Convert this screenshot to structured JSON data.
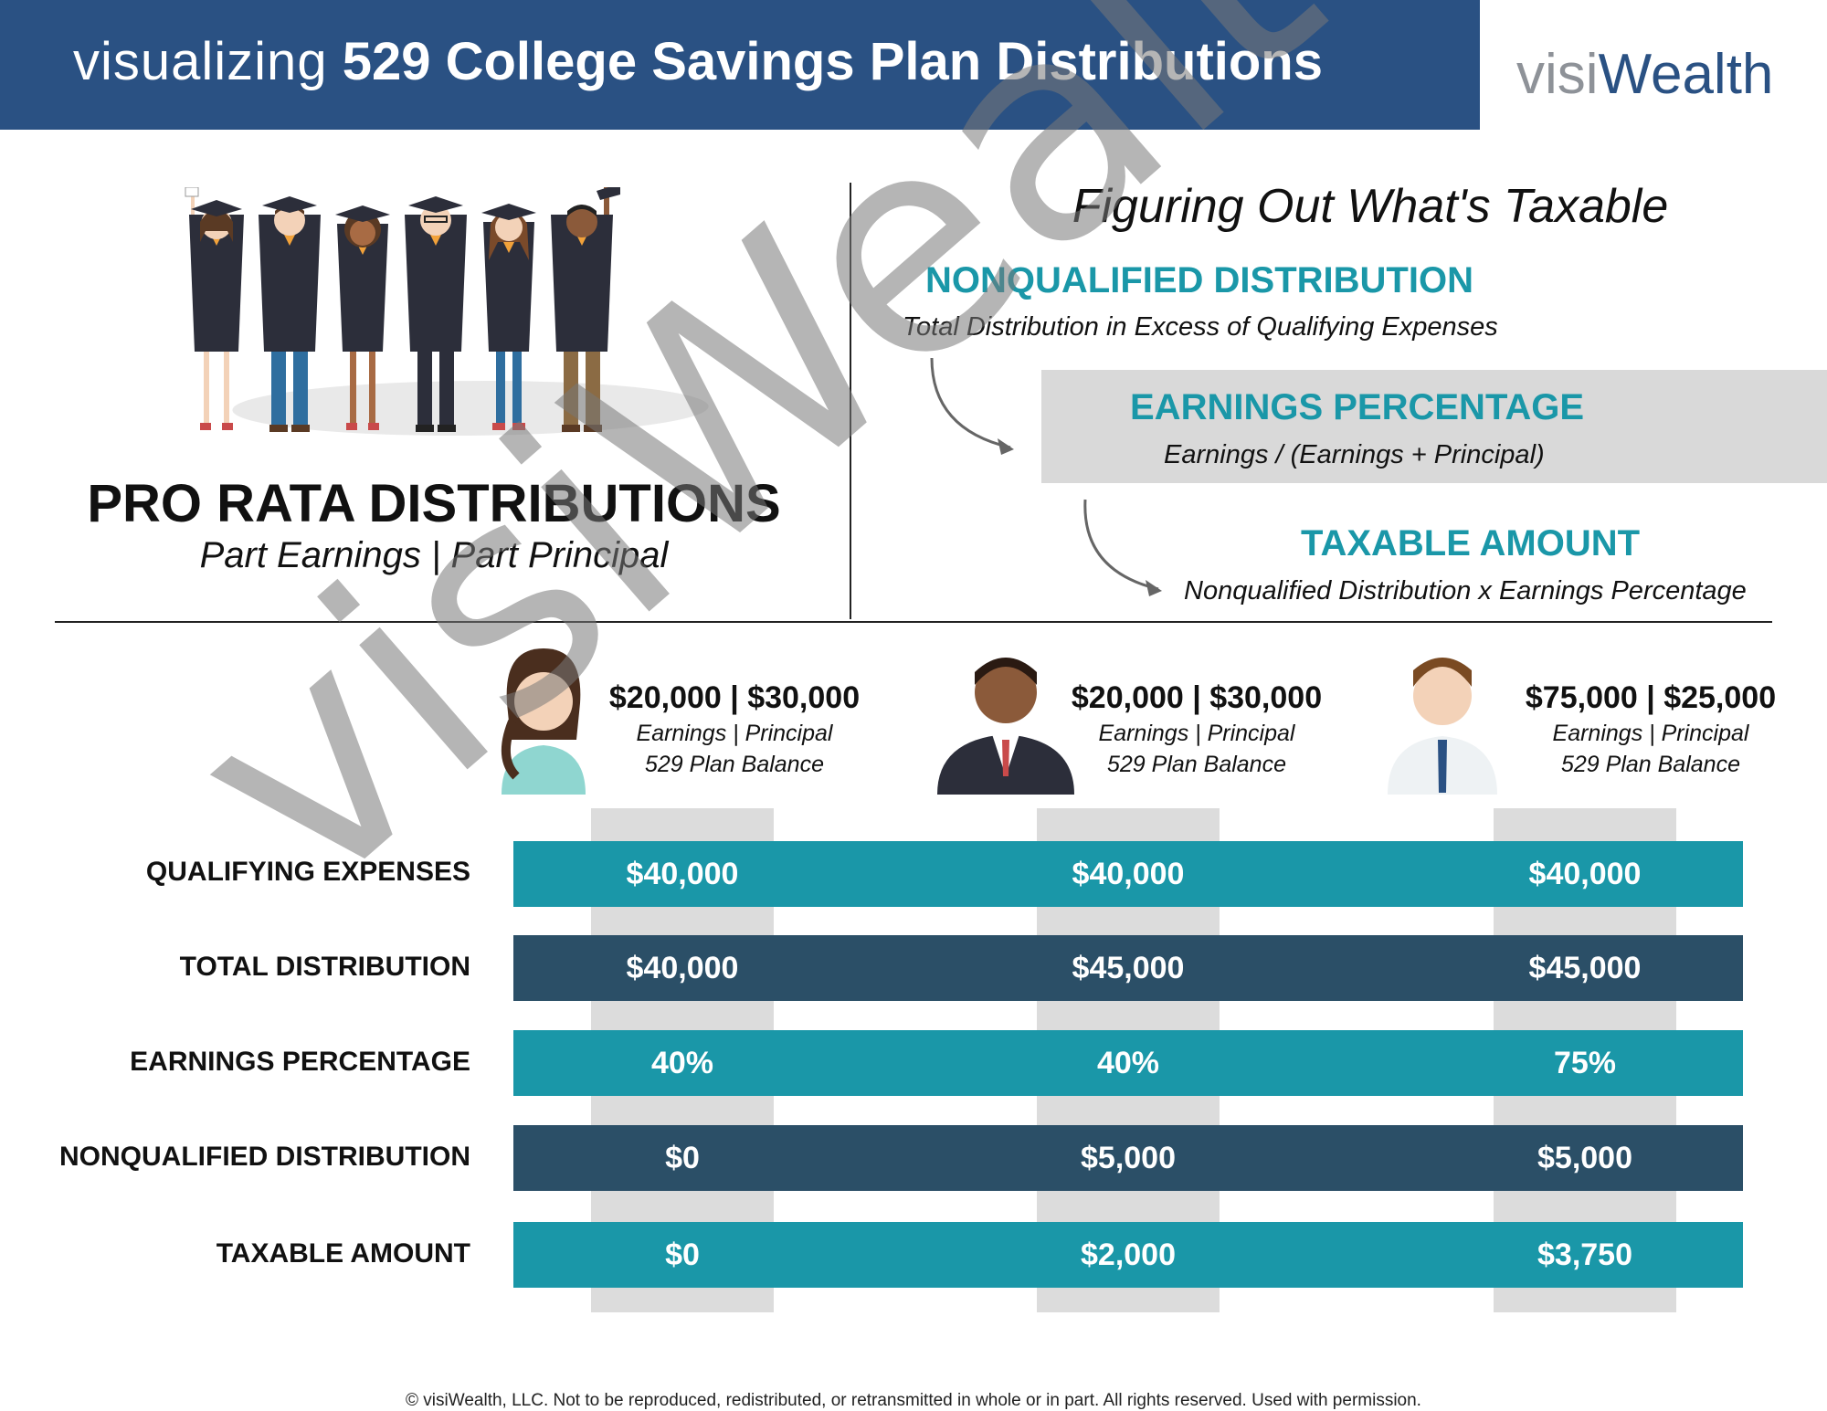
{
  "header": {
    "title_light": "visualizing",
    "title_bold": "529 College Savings Plan Distributions",
    "brand_gray": "visi",
    "brand_blue": "Wealth",
    "bg_color": "#2a5183"
  },
  "left_panel": {
    "illustration": "graduates-group-icon",
    "title": "PRO RATA DISTRIBUTIONS",
    "subtitle": "Part Earnings | Part Principal"
  },
  "right_panel": {
    "title": "Figuring Out What's Taxable",
    "steps": [
      {
        "heading": "NONQUALIFIED DISTRIBUTION",
        "description": "Total Distribution in Excess of Qualifying Expenses"
      },
      {
        "heading": "EARNINGS PERCENTAGE",
        "description": "Earnings / (Earnings + Principal)"
      },
      {
        "heading": "TAXABLE AMOUNT",
        "description": "Nonqualified Distribution x Earnings Percentage"
      }
    ],
    "accent_color": "#1a97a8"
  },
  "people": [
    {
      "icon": "woman-avatar-icon",
      "amounts": "$20,000 | $30,000",
      "label1": "Earnings | Principal",
      "label2": "529 Plan Balance"
    },
    {
      "icon": "man-suit-avatar-icon",
      "amounts": "$20,000 | $30,000",
      "label1": "Earnings | Principal",
      "label2": "529 Plan Balance"
    },
    {
      "icon": "man-tie-avatar-icon",
      "amounts": "$75,000 | $25,000",
      "label1": "Earnings | Principal",
      "label2": "529 Plan Balance"
    }
  ],
  "table": {
    "rows": [
      {
        "label": "QUALIFYING EXPENSES",
        "values": [
          "$40,000",
          "$40,000",
          "$40,000"
        ],
        "color": "#1a97a8"
      },
      {
        "label": "TOTAL DISTRIBUTION",
        "values": [
          "$40,000",
          "$45,000",
          "$45,000"
        ],
        "color": "#2b4f67"
      },
      {
        "label": "EARNINGS PERCENTAGE",
        "values": [
          "40%",
          "40%",
          "75%"
        ],
        "color": "#1a97a8"
      },
      {
        "label": "NONQUALIFIED DISTRIBUTION",
        "values": [
          "$0",
          "$5,000",
          "$5,000"
        ],
        "color": "#2b4f67"
      },
      {
        "label": "TAXABLE AMOUNT",
        "values": [
          "$0",
          "$2,000",
          "$3,750"
        ],
        "color": "#1a97a8"
      }
    ]
  },
  "watermark": "visiWealth",
  "footer": "© visiWealth, LLC. Not to be reproduced, redistributed, or retransmitted in whole or in part. All rights reserved. Used with permission."
}
